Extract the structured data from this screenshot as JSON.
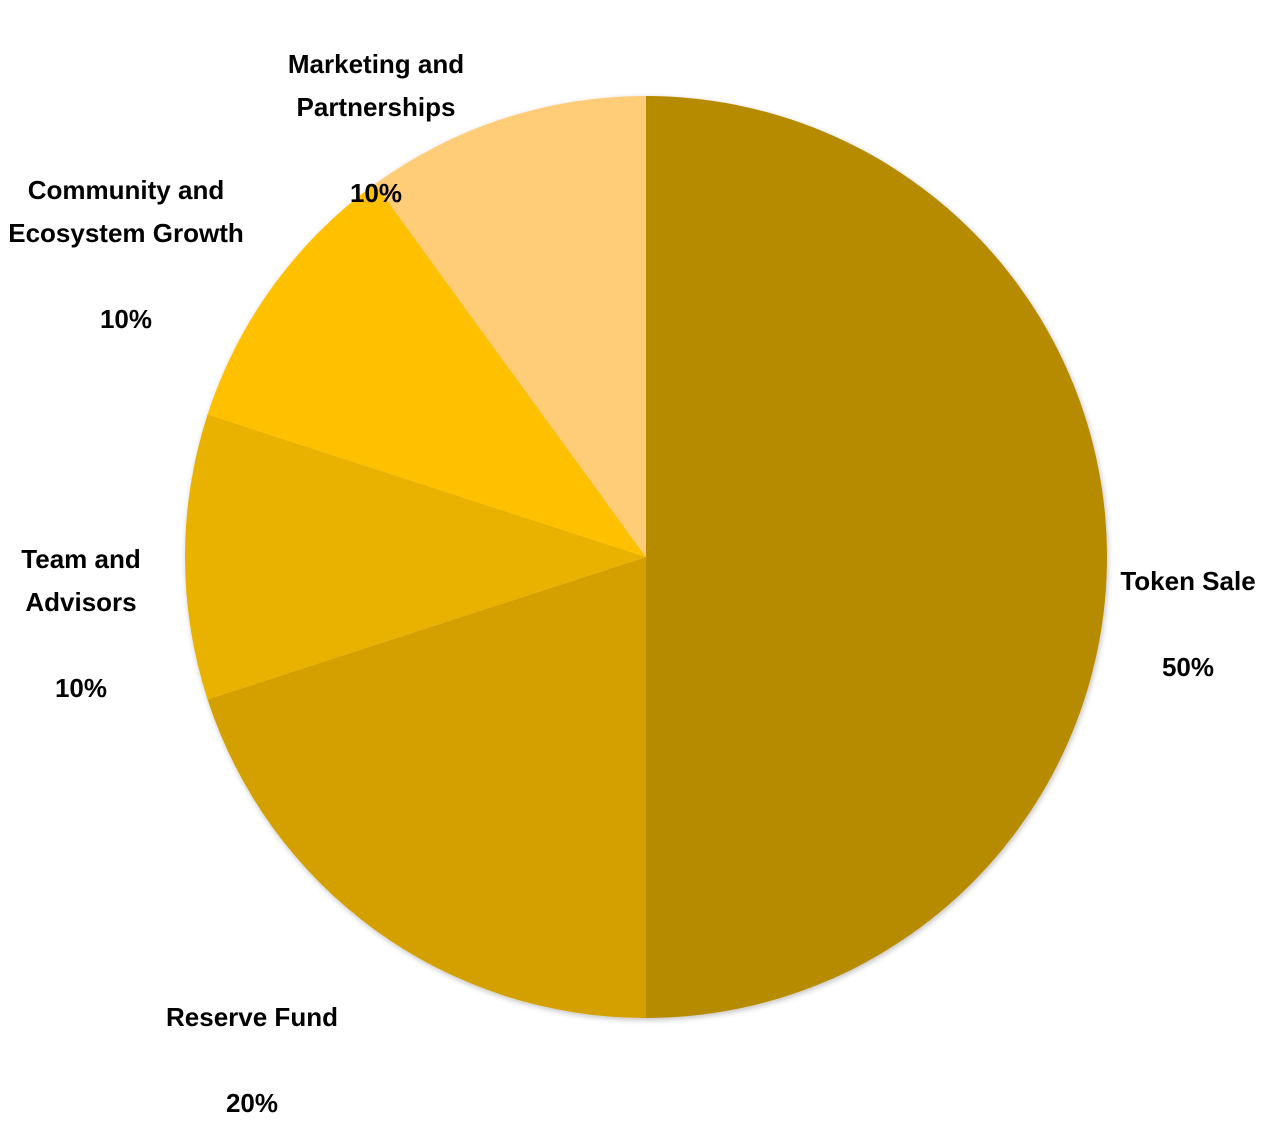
{
  "chart_data": {
    "type": "pie",
    "start_angle_deg": 0,
    "direction": "clockwise",
    "slices": [
      {
        "label": "Token Sale",
        "value": 50,
        "value_label": "50%",
        "color": "#B78B00"
      },
      {
        "label": "Reserve Fund",
        "value": 20,
        "value_label": "20%",
        "color": "#D4A000"
      },
      {
        "label": "Team and Advisors",
        "value": 10,
        "value_label": "10%",
        "color": "#EAB200"
      },
      {
        "label": "Community and Ecosystem Growth",
        "value": 10,
        "value_label": "10%",
        "color": "#FFC000"
      },
      {
        "label": "Marketing and Partnerships",
        "value": 10,
        "value_label": "10%",
        "color": "#FFCC77"
      }
    ],
    "legend": "none",
    "title": ""
  }
}
